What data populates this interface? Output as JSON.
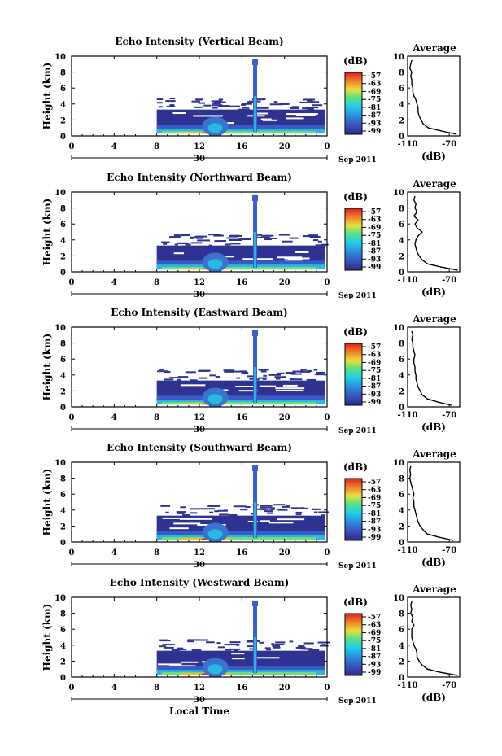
{
  "figure": {
    "xlabel": "Local Time",
    "date_label": "Sep 2011",
    "date_day": "30",
    "x_ticks": [
      "0",
      "4",
      "8",
      "12",
      "16",
      "20",
      "0"
    ],
    "y_ticks": [
      "0",
      "2",
      "4",
      "6",
      "8",
      "10"
    ],
    "ylabel": "Height (km)",
    "unit": "(dB)",
    "avg_title": "Average",
    "avg_xlabel": "(dB)",
    "avg_x_ticks": [
      "-110",
      "-70"
    ],
    "colorbar_ticks": [
      "-57",
      "-63",
      "-69",
      "-75",
      "-81",
      "-87",
      "-93",
      "-99"
    ],
    "colors": {
      "low": "#2b2f8f",
      "mid": "#20c8e0",
      "high": "#f0c020",
      "max": "#e02020"
    }
  },
  "chart_data": [
    {
      "type": "heatmap",
      "title": "Echo Intensity (Vertical Beam)",
      "xlabel": "Local Time",
      "ylabel": "Height (km)",
      "xlim": [
        0,
        24
      ],
      "ylim": [
        0,
        10
      ],
      "colorbar": {
        "label": "(dB)",
        "range": [
          -102,
          -54
        ]
      },
      "data_start_hour": 8,
      "average_profile": {
        "xlim": [
          -110,
          -60
        ],
        "height_km": [
          0.2,
          0.6,
          1.0,
          1.5,
          2.0,
          2.5,
          3.0,
          3.5,
          4.0,
          4.5,
          5.0,
          5.5,
          6.0,
          6.5,
          7.0,
          7.5,
          8.0,
          8.5,
          9.0,
          9.5
        ],
        "echo_db": [
          -63,
          -77,
          -90,
          -95,
          -97,
          -99,
          -100,
          -100,
          -101,
          -102,
          -104,
          -105,
          -105,
          -106,
          -106,
          -107,
          -106,
          -108,
          -107,
          -106
        ]
      }
    },
    {
      "type": "heatmap",
      "title": "Echo Intensity (Northward Beam)",
      "xlabel": "Local Time",
      "ylabel": "Height (km)",
      "xlim": [
        0,
        24
      ],
      "ylim": [
        0,
        10
      ],
      "colorbar": {
        "label": "(dB)",
        "range": [
          -102,
          -54
        ]
      },
      "data_start_hour": 8,
      "average_profile": {
        "xlim": [
          -110,
          -60
        ],
        "height_km": [
          0.2,
          0.6,
          1.0,
          1.5,
          2.0,
          2.5,
          3.0,
          3.5,
          4.0,
          4.5,
          5.0,
          5.5,
          6.0,
          6.5,
          7.0,
          7.5,
          8.0,
          8.5,
          9.0,
          9.5
        ],
        "echo_db": [
          -62,
          -78,
          -91,
          -96,
          -99,
          -101,
          -102,
          -103,
          -102,
          -100,
          -96,
          -101,
          -103,
          -100,
          -104,
          -101,
          -103,
          -102,
          -104,
          -103
        ]
      }
    },
    {
      "type": "heatmap",
      "title": "Echo Intensity (Eastward Beam)",
      "xlabel": "Local Time",
      "ylabel": "Height (km)",
      "xlim": [
        0,
        24
      ],
      "ylim": [
        0,
        10
      ],
      "colorbar": {
        "label": "(dB)",
        "range": [
          -102,
          -54
        ]
      },
      "data_start_hour": 8,
      "average_profile": {
        "xlim": [
          -110,
          -60
        ],
        "height_km": [
          0.2,
          0.6,
          1.0,
          1.5,
          2.0,
          2.5,
          3.0,
          3.5,
          4.0,
          4.5,
          5.0,
          5.5,
          6.0,
          6.5,
          7.0,
          7.5,
          8.0,
          8.5,
          9.0,
          9.5
        ],
        "echo_db": [
          -68,
          -81,
          -91,
          -96,
          -98,
          -100,
          -101,
          -102,
          -102,
          -103,
          -103,
          -104,
          -104,
          -103,
          -104,
          -105,
          -105,
          -106,
          -105,
          -106
        ]
      }
    },
    {
      "type": "heatmap",
      "title": "Echo Intensity (Southward Beam)",
      "xlabel": "Local Time",
      "ylabel": "Height (km)",
      "xlim": [
        0,
        24
      ],
      "ylim": [
        0,
        10
      ],
      "colorbar": {
        "label": "(dB)",
        "range": [
          -102,
          -54
        ]
      },
      "data_start_hour": 8,
      "average_profile": {
        "xlim": [
          -110,
          -60
        ],
        "height_km": [
          0.2,
          0.6,
          1.0,
          1.5,
          2.0,
          2.5,
          3.0,
          3.5,
          4.0,
          4.5,
          5.0,
          5.5,
          6.0,
          6.5,
          7.0,
          7.5,
          8.0,
          8.5,
          9.0,
          9.5
        ],
        "echo_db": [
          -66,
          -80,
          -91,
          -95,
          -98,
          -100,
          -101,
          -102,
          -103,
          -104,
          -104,
          -105,
          -104,
          -105,
          -106,
          -107,
          -108,
          -107,
          -108,
          -107
        ]
      }
    },
    {
      "type": "heatmap",
      "title": "Echo Intensity (Westward Beam)",
      "xlabel": "Local Time",
      "ylabel": "Height (km)",
      "xlim": [
        0,
        24
      ],
      "ylim": [
        0,
        10
      ],
      "colorbar": {
        "label": "(dB)",
        "range": [
          -102,
          -54
        ]
      },
      "data_start_hour": 8,
      "average_profile": {
        "xlim": [
          -110,
          -60
        ],
        "height_km": [
          0.2,
          0.6,
          1.0,
          1.5,
          2.0,
          2.5,
          3.0,
          3.5,
          4.0,
          4.5,
          5.0,
          5.5,
          6.0,
          6.5,
          7.0,
          7.5,
          8.0,
          8.5,
          9.0,
          9.5
        ],
        "echo_db": [
          -62,
          -79,
          -91,
          -96,
          -99,
          -101,
          -101,
          -102,
          -104,
          -105,
          -106,
          -106,
          -106,
          -104,
          -106,
          -105,
          -107,
          -106,
          -107,
          -106
        ]
      }
    }
  ]
}
